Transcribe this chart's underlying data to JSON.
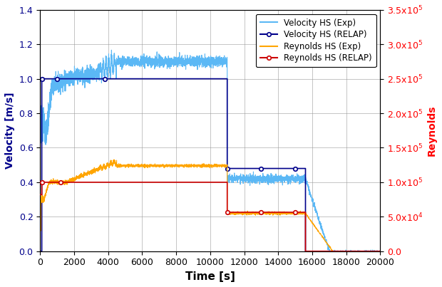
{
  "title": "",
  "xlabel": "Time [s]",
  "ylabel_left": "Velocity [m/s]",
  "ylabel_right": "Reynolds",
  "xlim": [
    0,
    20000
  ],
  "ylim_left": [
    0.0,
    1.4
  ],
  "ylim_right": [
    0.0,
    350000
  ],
  "yticks_left": [
    0.0,
    0.2,
    0.4,
    0.6,
    0.8,
    1.0,
    1.2,
    1.4
  ],
  "yticks_right": [
    0,
    50000,
    100000,
    150000,
    200000,
    250000,
    300000,
    350000
  ],
  "xticks": [
    0,
    2000,
    4000,
    6000,
    8000,
    10000,
    12000,
    14000,
    16000,
    18000,
    20000
  ],
  "colors": {
    "vel_exp": "#5BB8F5",
    "vel_relap": "#00008B",
    "re_exp": "#FFA500",
    "re_relap": "#CC0000"
  },
  "legend": [
    "Velocity HS (Exp)",
    "Velocity HS (RELAP)",
    "Reynolds HS (Exp)",
    "Reynolds HS (RELAP)"
  ]
}
